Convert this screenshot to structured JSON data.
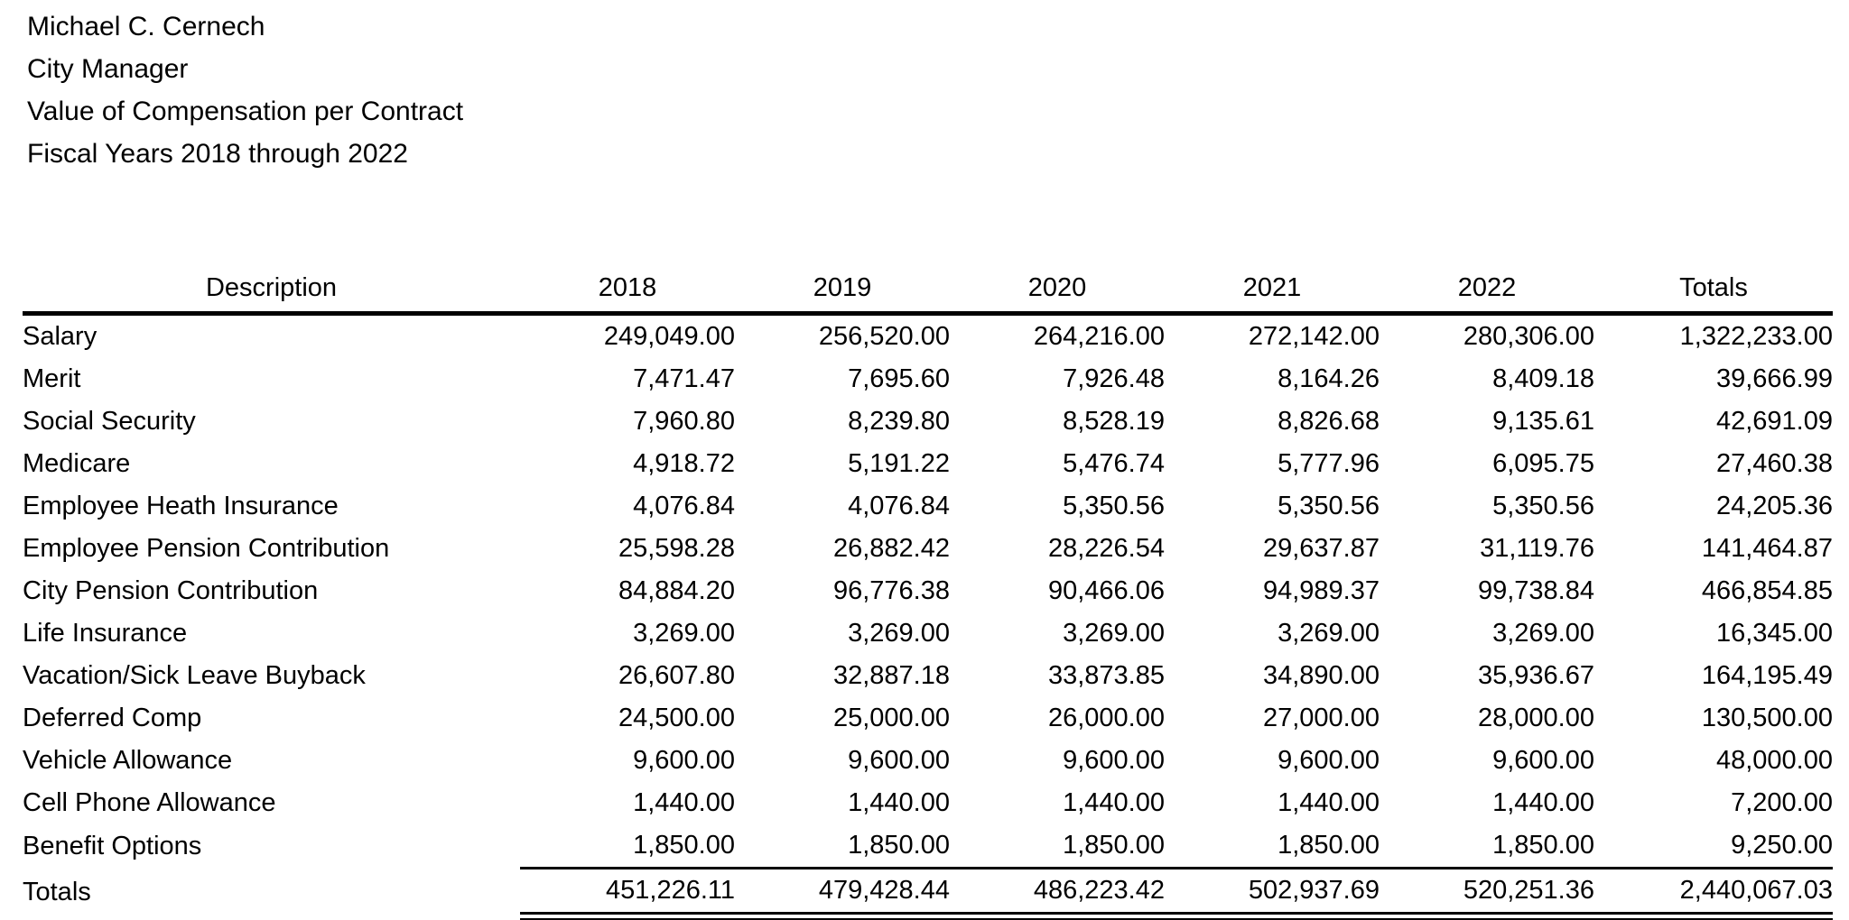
{
  "header": {
    "name": "Michael C. Cernech",
    "title": "City Manager",
    "report_title": "Value of Compensation per Contract",
    "report_period": "Fiscal Years 2018 through 2022"
  },
  "table": {
    "columns": [
      "Description",
      "2018",
      "2019",
      "2020",
      "2021",
      "2022",
      "Totals"
    ],
    "rows": [
      {
        "label": "Salary",
        "values": [
          "249,049.00",
          "256,520.00",
          "264,216.00",
          "272,142.00",
          "280,306.00",
          "1,322,233.00"
        ]
      },
      {
        "label": "Merit",
        "values": [
          "7,471.47",
          "7,695.60",
          "7,926.48",
          "8,164.26",
          "8,409.18",
          "39,666.99"
        ]
      },
      {
        "label": "Social Security",
        "values": [
          "7,960.80",
          "8,239.80",
          "8,528.19",
          "8,826.68",
          "9,135.61",
          "42,691.09"
        ]
      },
      {
        "label": "Medicare",
        "values": [
          "4,918.72",
          "5,191.22",
          "5,476.74",
          "5,777.96",
          "6,095.75",
          "27,460.38"
        ]
      },
      {
        "label": "Employee Heath Insurance",
        "values": [
          "4,076.84",
          "4,076.84",
          "5,350.56",
          "5,350.56",
          "5,350.56",
          "24,205.36"
        ]
      },
      {
        "label": "Employee Pension Contribution",
        "values": [
          "25,598.28",
          "26,882.42",
          "28,226.54",
          "29,637.87",
          "31,119.76",
          "141,464.87"
        ]
      },
      {
        "label": "City Pension Contribution",
        "values": [
          "84,884.20",
          "96,776.38",
          "90,466.06",
          "94,989.37",
          "99,738.84",
          "466,854.85"
        ]
      },
      {
        "label": "Life Insurance",
        "values": [
          "3,269.00",
          "3,269.00",
          "3,269.00",
          "3,269.00",
          "3,269.00",
          "16,345.00"
        ]
      },
      {
        "label": "Vacation/Sick Leave Buyback",
        "values": [
          "26,607.80",
          "32,887.18",
          "33,873.85",
          "34,890.00",
          "35,936.67",
          "164,195.49"
        ]
      },
      {
        "label": "Deferred Comp",
        "values": [
          "24,500.00",
          "25,000.00",
          "26,000.00",
          "27,000.00",
          "28,000.00",
          "130,500.00"
        ]
      },
      {
        "label": "Vehicle Allowance",
        "values": [
          "9,600.00",
          "9,600.00",
          "9,600.00",
          "9,600.00",
          "9,600.00",
          "48,000.00"
        ]
      },
      {
        "label": "Cell Phone Allowance",
        "values": [
          "1,440.00",
          "1,440.00",
          "1,440.00",
          "1,440.00",
          "1,440.00",
          "7,200.00"
        ]
      },
      {
        "label": "Benefit Options",
        "values": [
          "1,850.00",
          "1,850.00",
          "1,850.00",
          "1,850.00",
          "1,850.00",
          "9,250.00"
        ]
      }
    ],
    "totals_row": {
      "label": "Totals",
      "values": [
        "451,226.11",
        "479,428.44",
        "486,223.42",
        "502,937.69",
        "520,251.36",
        "2,440,067.03"
      ]
    }
  },
  "colors": {
    "text": "#000000",
    "background": "#ffffff",
    "rule": "#000000"
  }
}
